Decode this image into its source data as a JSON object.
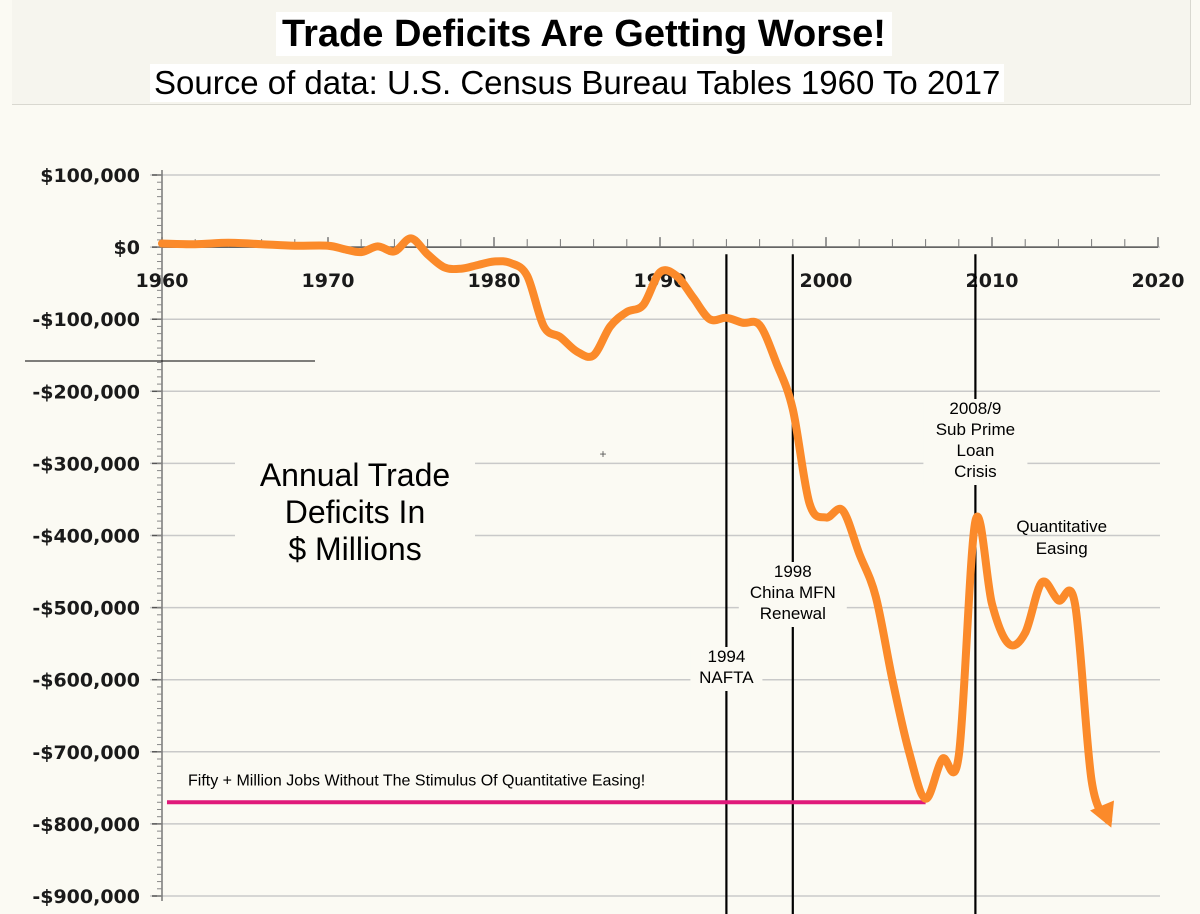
{
  "header": {
    "title": "Trade Deficits Are Getting Worse!",
    "subtitle": "Source of data:  U.S. Census Bureau Tables 1960 To 2017"
  },
  "chart_data": {
    "type": "line",
    "title": "Trade Deficits Are Getting Worse!",
    "subtitle": "Source of data:  U.S. Census Bureau Tables 1960 To 2017",
    "ylabel_lines": [
      "Annual Trade",
      "Deficits In",
      "$ Millions"
    ],
    "xlabel": "",
    "xlim": [
      1960,
      2020
    ],
    "ylim": [
      -900000,
      100000
    ],
    "xticks": [
      {
        "value": 1960,
        "label": "1960"
      },
      {
        "value": 1970,
        "label": "1970"
      },
      {
        "value": 1980,
        "label": "1980"
      },
      {
        "value": 1990,
        "label": "1990"
      },
      {
        "value": 2000,
        "label": "2000"
      },
      {
        "value": 2010,
        "label": "2010"
      },
      {
        "value": 2020,
        "label": "2020"
      }
    ],
    "yticks": [
      {
        "value": 100000,
        "label": "$100,000"
      },
      {
        "value": 0,
        "label": "$0"
      },
      {
        "value": -100000,
        "label": "-$100,000"
      },
      {
        "value": -200000,
        "label": "-$200,000"
      },
      {
        "value": -300000,
        "label": "-$300,000"
      },
      {
        "value": -400000,
        "label": "-$400,000"
      },
      {
        "value": -500000,
        "label": "-$500,000"
      },
      {
        "value": -600000,
        "label": "-$600,000"
      },
      {
        "value": -700000,
        "label": "-$700,000"
      },
      {
        "value": -800000,
        "label": "-$800,000"
      },
      {
        "value": -900000,
        "label": "-$900,000"
      }
    ],
    "grid": true,
    "series": [
      {
        "name": "Annual Trade Deficit",
        "color": "#fb8a2a",
        "x": [
          1960,
          1962,
          1964,
          1966,
          1968,
          1970,
          1971,
          1972,
          1973,
          1974,
          1975,
          1976,
          1977,
          1978,
          1979,
          1980,
          1981,
          1982,
          1983,
          1984,
          1985,
          1986,
          1987,
          1988,
          1989,
          1990,
          1991,
          1992,
          1993,
          1994,
          1995,
          1996,
          1997,
          1998,
          1999,
          2000,
          2001,
          2002,
          2003,
          2004,
          2005,
          2006,
          2007,
          2008,
          2009,
          2010,
          2011,
          2012,
          2013,
          2014,
          2015,
          2016,
          2017
        ],
        "values": [
          5000,
          4000,
          6000,
          4000,
          2000,
          2000,
          -3000,
          -7000,
          1000,
          -6000,
          12000,
          -10000,
          -28000,
          -30000,
          -25000,
          -20000,
          -22000,
          -40000,
          -110000,
          -125000,
          -145000,
          -150000,
          -110000,
          -90000,
          -80000,
          -35000,
          -40000,
          -70000,
          -100000,
          -98000,
          -105000,
          -108000,
          -160000,
          -225000,
          -355000,
          -375000,
          -365000,
          -425000,
          -485000,
          -600000,
          -700000,
          -765000,
          -710000,
          -705000,
          -380000,
          -495000,
          -550000,
          -535000,
          -465000,
          -490000,
          -495000,
          -740000,
          -795000
        ]
      }
    ],
    "vertical_markers": [
      {
        "x": 1994,
        "label_lines": [
          "1994",
          "NAFTA"
        ]
      },
      {
        "x": 1998,
        "label_lines": [
          "1998",
          "China MFN",
          "Renewal"
        ]
      },
      {
        "x": 2009,
        "label_lines": [
          "2008/9",
          "Sub Prime",
          "Loan",
          "Crisis"
        ]
      }
    ],
    "annotations": [
      {
        "label_lines": [
          "Quantitative",
          "Easing"
        ],
        "x": 2014.2,
        "y": -400000
      }
    ],
    "reference_line": {
      "label": "Fifty + Million Jobs Without The Stimulus Of Quantitative Easing!",
      "x_start": 1960.3,
      "x_end": 2006,
      "y": -770000,
      "color": "#e0197a"
    }
  }
}
